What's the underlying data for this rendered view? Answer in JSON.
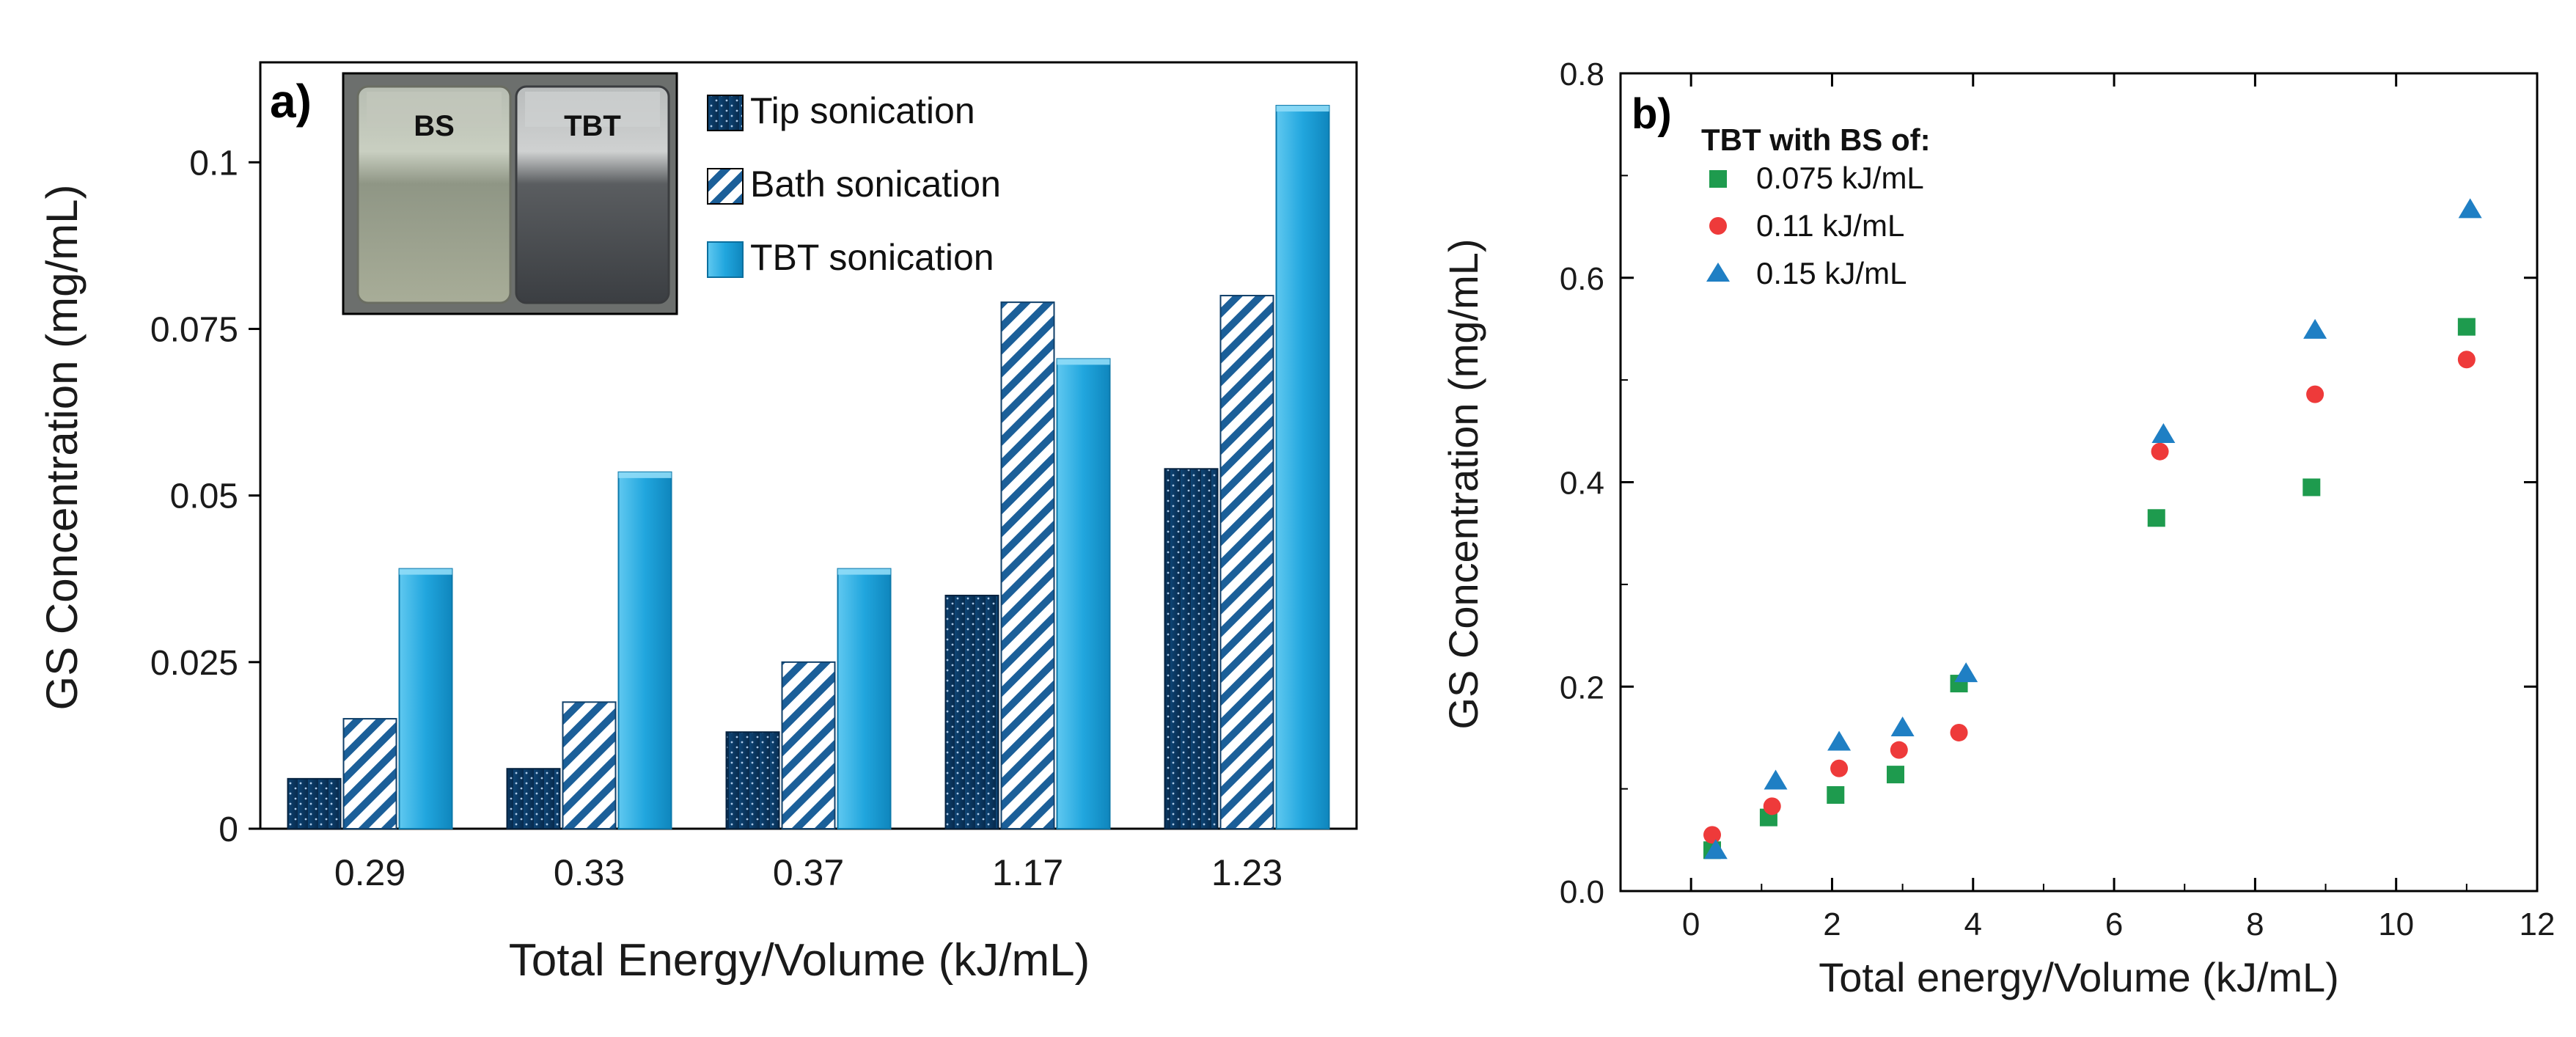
{
  "chart_data": [
    {
      "panel": "a)",
      "type": "bar",
      "xlabel": "Total Energy/Volume  (kJ/mL)",
      "ylabel": "GS Concentration  (mg/mL)",
      "categories": [
        "0.29",
        "0.33",
        "0.37",
        "1.17",
        "1.23"
      ],
      "ylim": [
        0,
        0.115
      ],
      "yticks": [
        0,
        0.025,
        0.05,
        0.075,
        0.1
      ],
      "ytick_labels": [
        "0",
        "0.025",
        "0.05",
        "0.075",
        "0.1"
      ],
      "series": [
        {
          "name": "Tip sonication",
          "values": [
            0.0075,
            0.009,
            0.0145,
            0.035,
            0.054
          ]
        },
        {
          "name": "Bath sonication",
          "values": [
            0.0165,
            0.019,
            0.025,
            0.079,
            0.08
          ]
        },
        {
          "name": "TBT sonication",
          "values": [
            0.039,
            0.0535,
            0.039,
            0.0705,
            0.1085
          ]
        }
      ],
      "inset": {
        "labels": [
          "BS",
          "TBT"
        ]
      },
      "colors": {
        "tip": "#0b3a66",
        "bath": "#1b5f99",
        "tbt": "#1fa3dc"
      }
    },
    {
      "panel": "b)",
      "type": "scatter",
      "xlabel": "Total energy/Volume (kJ/mL)",
      "ylabel": "GS Concentration (mg/mL)",
      "xlim": [
        -1,
        12
      ],
      "ylim": [
        0,
        0.8
      ],
      "xticks": [
        0,
        2,
        4,
        6,
        8,
        10,
        12
      ],
      "yticks": [
        0.0,
        0.2,
        0.4,
        0.6,
        0.8
      ],
      "ytick_labels": [
        "0.0",
        "0.2",
        "0.4",
        "0.6",
        "0.8"
      ],
      "legend_title": "TBT with BS of:",
      "series": [
        {
          "name": "0.075 kJ/mL",
          "marker": "square",
          "color": "#1e9b4e",
          "x": [
            0.3,
            1.1,
            2.05,
            2.9,
            3.8,
            6.6,
            8.8,
            11.0
          ],
          "y": [
            0.04,
            0.072,
            0.094,
            0.114,
            0.203,
            0.365,
            0.395,
            0.552
          ]
        },
        {
          "name": "0.11 kJ/mL",
          "marker": "circle",
          "color": "#ee3a3a",
          "x": [
            0.3,
            1.15,
            2.1,
            2.95,
            3.8,
            6.65,
            8.85,
            11.0
          ],
          "y": [
            0.055,
            0.083,
            0.12,
            0.138,
            0.155,
            0.43,
            0.486,
            0.52
          ]
        },
        {
          "name": "0.15 kJ/mL",
          "marker": "triangle",
          "color": "#1f7fc4",
          "x": [
            0.35,
            1.2,
            2.1,
            3.0,
            3.9,
            6.7,
            8.85,
            11.05
          ],
          "y": [
            0.04,
            0.108,
            0.146,
            0.16,
            0.213,
            0.447,
            0.549,
            0.667
          ]
        }
      ]
    }
  ]
}
